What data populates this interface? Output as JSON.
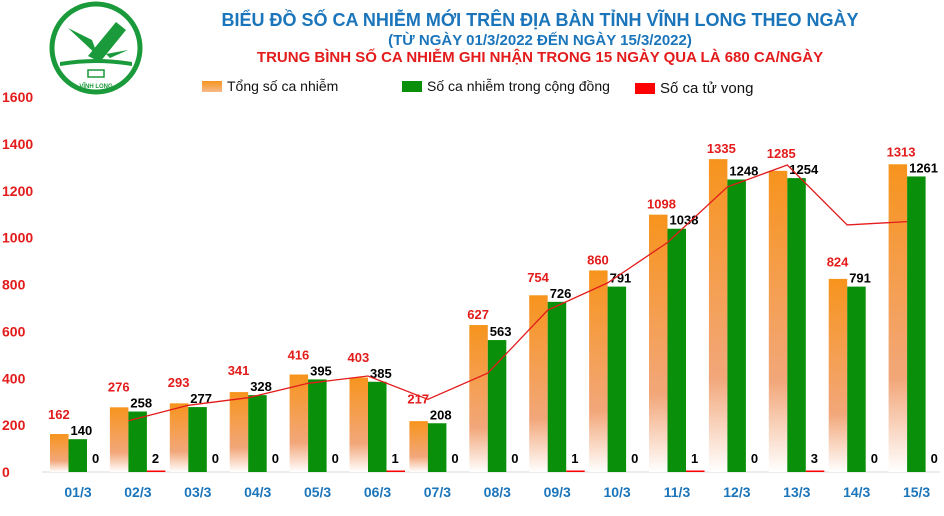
{
  "logo": {
    "text": "VĨNH LONG"
  },
  "chart_data": {
    "type": "bar",
    "title": "BIỂU ĐỒ SỐ CA NHIỄM MỚI TRÊN ĐỊA BÀN TỈNH VĨNH LONG THEO NGÀY",
    "subtitle": "(TỪ NGÀY 01/3/2022 ĐẾN NGÀY 15/3/2022)",
    "note": "TRUNG BÌNH SỐ CA NHIỄM GHI NHẬN TRONG 15 NGÀY QUA LÀ 680 CA/NGÀY",
    "categories": [
      "01/3",
      "02/3",
      "03/3",
      "04/3",
      "05/3",
      "06/3",
      "07/3",
      "08/3",
      "09/3",
      "10/3",
      "11/3",
      "12/3",
      "13/3",
      "14/3",
      "15/3"
    ],
    "series": [
      {
        "name": "Tổng số ca nhiễm",
        "color": "#f7941d",
        "label_color": "#e31b1b",
        "values": [
          162,
          276,
          293,
          341,
          416,
          403,
          217,
          627,
          754,
          860,
          1098,
          1335,
          1285,
          824,
          1313
        ]
      },
      {
        "name": "Số ca nhiễm trong cộng đồng",
        "color": "#0a8f0a",
        "label_color": "#000000",
        "values": [
          140,
          258,
          277,
          328,
          395,
          385,
          208,
          563,
          726,
          791,
          1038,
          1248,
          1254,
          791,
          1261
        ]
      },
      {
        "name": "Số ca tử vong",
        "color": "#ff0000",
        "label_color": "#000000",
        "values": [
          0,
          2,
          0,
          0,
          0,
          1,
          0,
          0,
          1,
          0,
          1,
          0,
          3,
          0,
          0
        ]
      }
    ],
    "trendline": {
      "type": "moving_average",
      "period": 2,
      "of": "Tổng số ca nhiễm",
      "color": "#e31b1b"
    },
    "yticks": [
      0,
      200,
      400,
      600,
      800,
      1000,
      1200,
      1400,
      1600
    ],
    "ylim": [
      0,
      1600
    ],
    "grid": false,
    "legend": "top",
    "tick_color": "#e31b1b",
    "category_color": "#1b75bb"
  }
}
